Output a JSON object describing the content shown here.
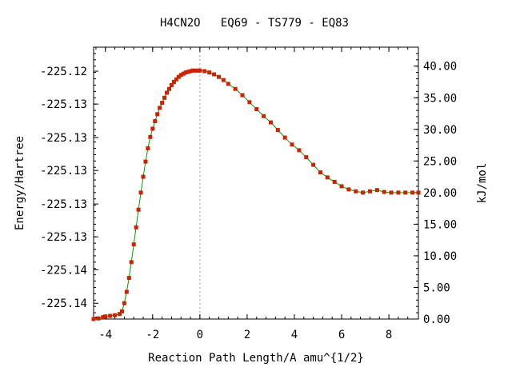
{
  "chart_data": {
    "type": "line",
    "title": "H4CN2O   EQ69 - TS779 - EQ83",
    "xlabel": "Reaction Path Length/A amu^{1/2}",
    "ylabel": "Energy/Hartree",
    "y2label": "kJ/mol",
    "xlim": [
      -4.5,
      9.25
    ],
    "xticks": [
      "-4",
      "-2",
      "0",
      "2",
      "4",
      "6",
      "8"
    ],
    "xtick_values": [
      -4,
      -2,
      0,
      2,
      4,
      6,
      8
    ],
    "ylim_kjmol": [
      0,
      43
    ],
    "yticks_left": [
      "-225.12",
      "-225.13",
      "-225.13",
      "-225.13",
      "-225.13",
      "-225.13",
      "-225.14",
      "-225.14"
    ],
    "yticks_left_kjmol": [
      39.2,
      34.0,
      28.7,
      23.5,
      18.2,
      13.0,
      7.8,
      2.5
    ],
    "yticks_right": [
      "40.00",
      "35.00",
      "30.00",
      "25.00",
      "20.00",
      "15.00",
      "10.00",
      "5.00",
      "0.00"
    ],
    "yticks_right_values": [
      40,
      35,
      30,
      25,
      20,
      15,
      10,
      5,
      0
    ],
    "ts_marker_x": 0,
    "grid": false,
    "legend": "none",
    "colors": {
      "line": "#00a000",
      "marker": "#cc2200",
      "ts_line": "#a0a0a0"
    },
    "x": [
      -4.5,
      -4.3,
      -4.1,
      -4.0,
      -3.8,
      -3.6,
      -3.4,
      -3.3,
      -3.2,
      -3.1,
      -3.0,
      -2.9,
      -2.8,
      -2.7,
      -2.6,
      -2.5,
      -2.4,
      -2.3,
      -2.2,
      -2.1,
      -2.0,
      -1.9,
      -1.8,
      -1.7,
      -1.6,
      -1.5,
      -1.4,
      -1.3,
      -1.2,
      -1.1,
      -1.0,
      -0.9,
      -0.8,
      -0.7,
      -0.6,
      -0.5,
      -0.4,
      -0.3,
      -0.2,
      -0.1,
      0.0,
      0.2,
      0.4,
      0.6,
      0.8,
      1.0,
      1.2,
      1.5,
      1.8,
      2.1,
      2.4,
      2.7,
      3.0,
      3.3,
      3.6,
      3.9,
      4.2,
      4.5,
      4.8,
      5.1,
      5.4,
      5.7,
      6.0,
      6.3,
      6.6,
      6.9,
      7.2,
      7.5,
      7.8,
      8.1,
      8.4,
      8.7,
      9.0,
      9.25
    ],
    "values": [
      0.0,
      0.1,
      0.3,
      0.4,
      0.5,
      0.6,
      0.8,
      1.2,
      2.5,
      4.3,
      6.5,
      9.0,
      11.8,
      14.5,
      17.3,
      20.0,
      22.5,
      24.9,
      27.0,
      28.8,
      30.1,
      31.3,
      32.4,
      33.4,
      34.2,
      35.0,
      35.8,
      36.4,
      37.0,
      37.5,
      37.9,
      38.3,
      38.6,
      38.8,
      39.0,
      39.1,
      39.2,
      39.3,
      39.3,
      39.3,
      39.3,
      39.2,
      39.0,
      38.7,
      38.3,
      37.8,
      37.2,
      36.4,
      35.4,
      34.3,
      33.2,
      32.1,
      31.1,
      29.9,
      28.7,
      27.6,
      26.7,
      25.6,
      24.4,
      23.2,
      22.4,
      21.7,
      21.0,
      20.5,
      20.2,
      20.0,
      20.2,
      20.4,
      20.1,
      20.0,
      20.0,
      20.0,
      20.0,
      20.0
    ]
  }
}
